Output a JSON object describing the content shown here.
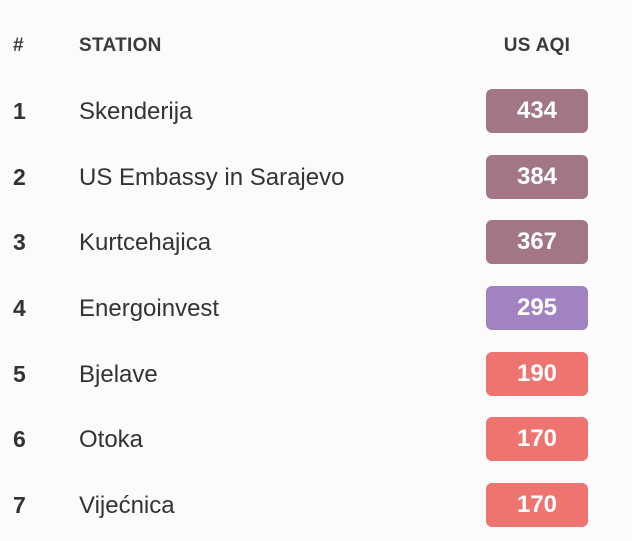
{
  "header": {
    "rank": "#",
    "station": "STATION",
    "aqi": "US AQI"
  },
  "rows": [
    {
      "rank": "1",
      "station": "Skenderija",
      "aqi": "434",
      "color": "#a27684"
    },
    {
      "rank": "2",
      "station": "US Embassy in Sarajevo",
      "aqi": "384",
      "color": "#a27684"
    },
    {
      "rank": "3",
      "station": "Kurtcehajica",
      "aqi": "367",
      "color": "#a27684"
    },
    {
      "rank": "4",
      "station": "Energoinvest",
      "aqi": "295",
      "color": "#a283c1"
    },
    {
      "rank": "5",
      "station": "Bjelave",
      "aqi": "190",
      "color": "#ee746f"
    },
    {
      "rank": "6",
      "station": "Otoka",
      "aqi": "170",
      "color": "#ee746f"
    },
    {
      "rank": "7",
      "station": "Vijećnica",
      "aqi": "170",
      "color": "#ee746f"
    }
  ]
}
